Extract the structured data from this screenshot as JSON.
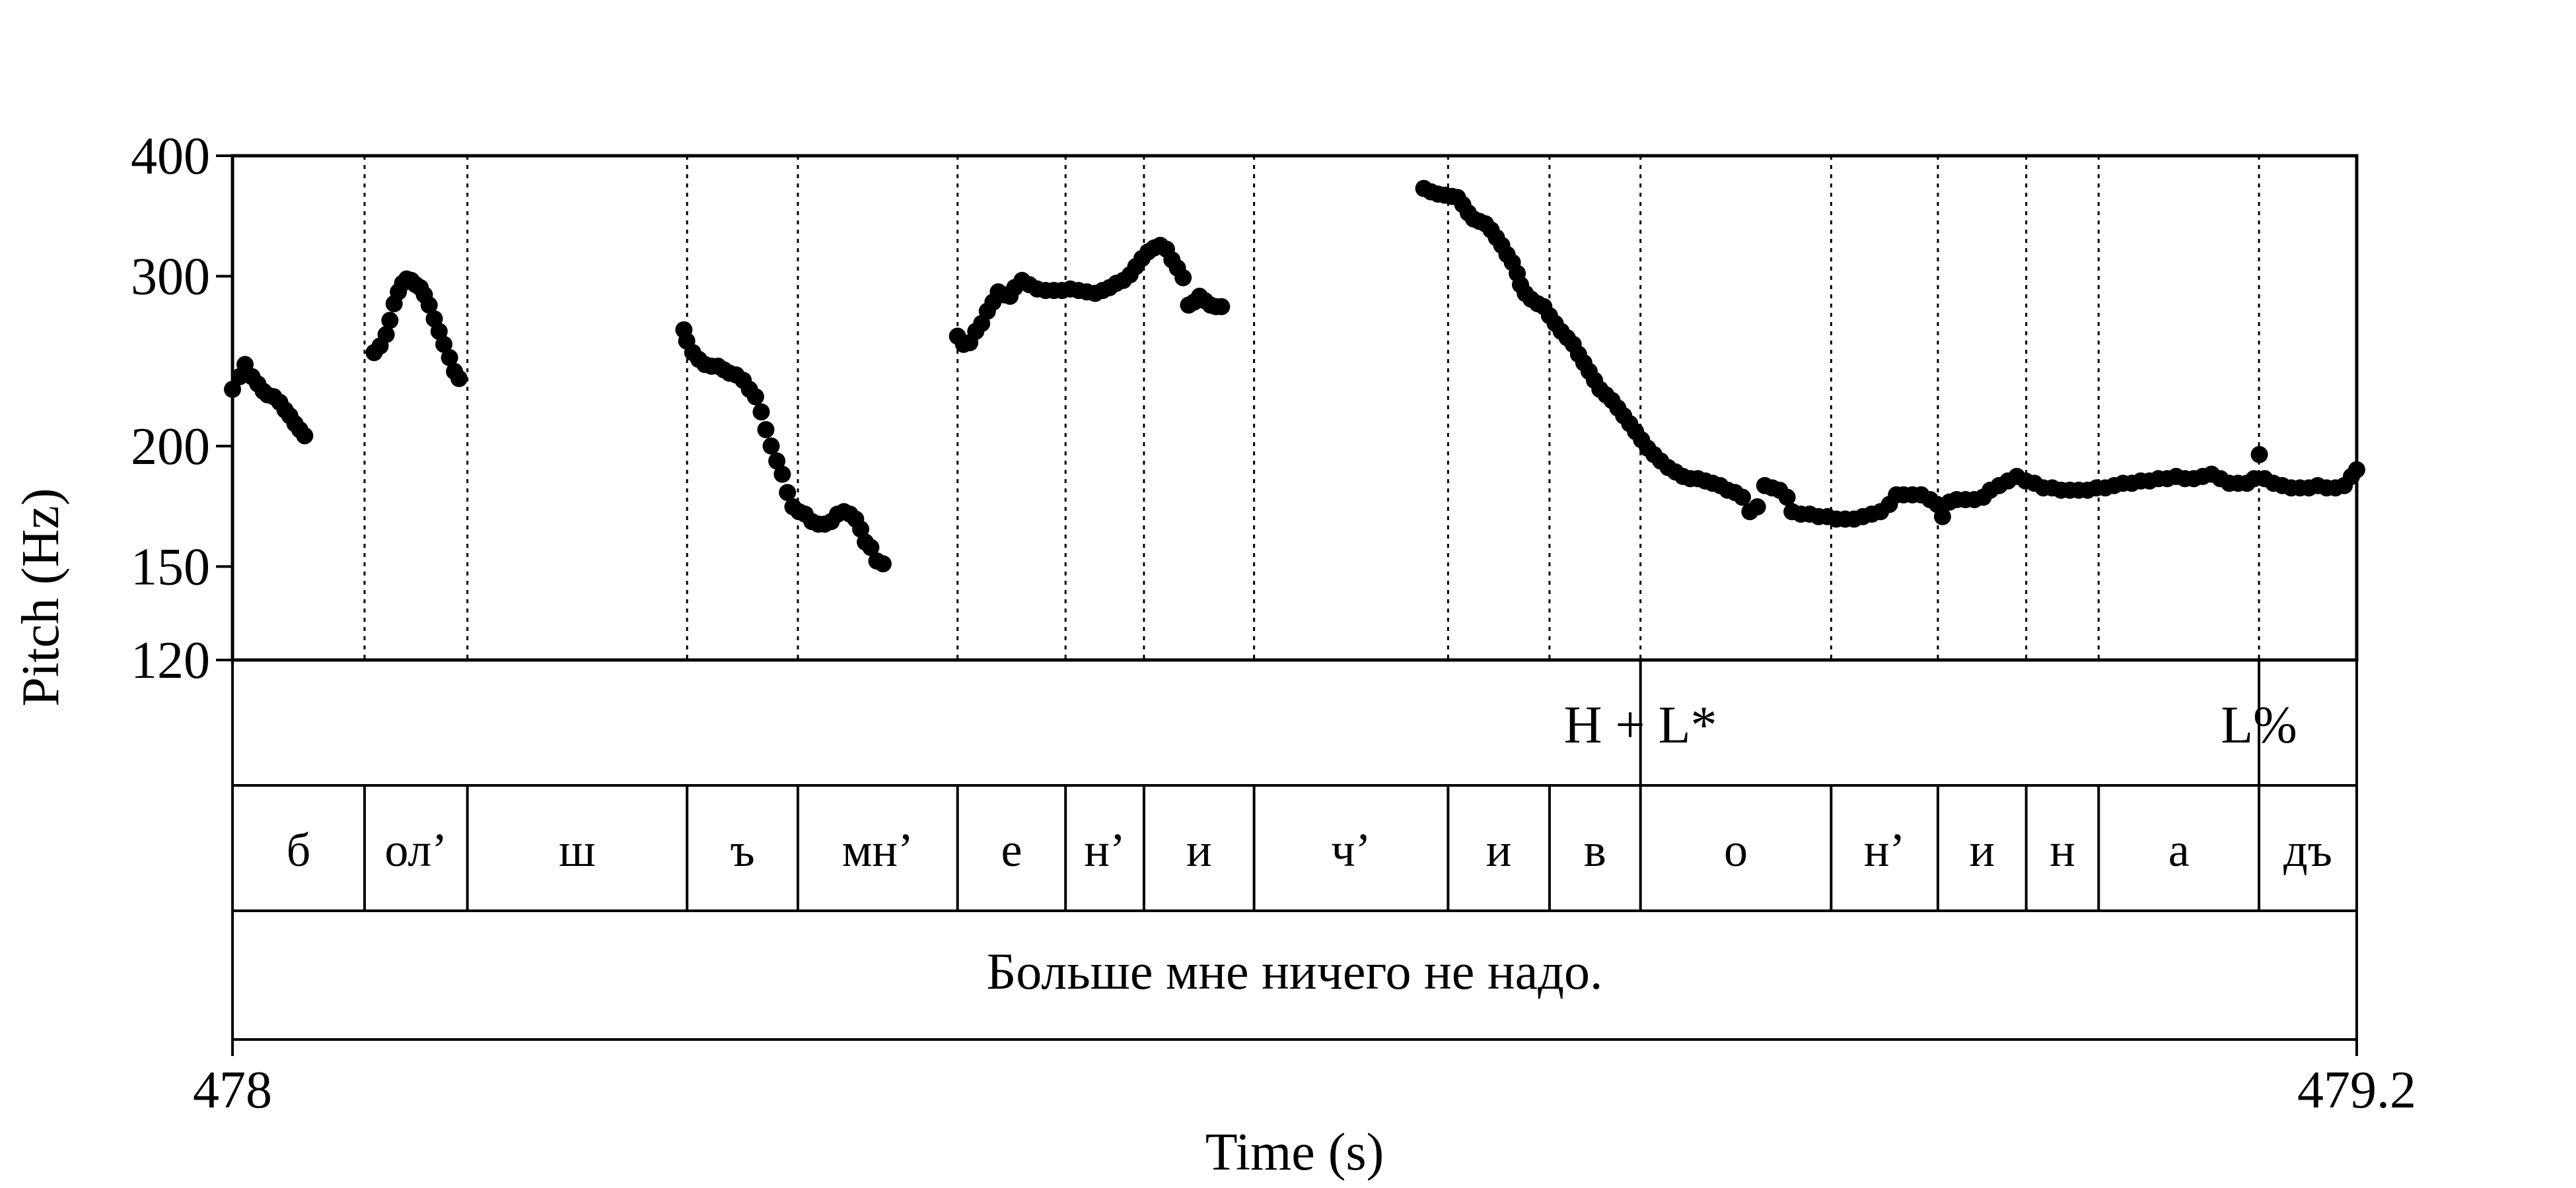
{
  "chart_data": {
    "type": "scatter",
    "title": "",
    "xlabel": "Time (s)",
    "ylabel": "Pitch (Hz)",
    "xlim": [
      478,
      479.2
    ],
    "ylim": [
      120,
      400
    ],
    "y_scale": "log",
    "x_tick_labels": [
      "478",
      "479.2"
    ],
    "y_tick_labels": [
      "120",
      "150",
      "200",
      "300",
      "400"
    ],
    "y_ticks": [
      120,
      150,
      200,
      300,
      400
    ],
    "grid": false,
    "point_color": "#000000",
    "segment_boundaries_s": [
      478.0746,
      478.1327,
      478.2568,
      478.3194,
      478.4096,
      478.4706,
      478.5149,
      478.5771,
      478.6867,
      478.744,
      478.7954,
      478.9031,
      478.9634,
      479.0133,
      479.0542,
      479.1448
    ],
    "tones": [
      {
        "label": "H+L*",
        "time_s": 478.7954
      },
      {
        "label": "L%",
        "time_s": 479.1448
      }
    ],
    "segments": [
      "б",
      "ол’",
      "ш",
      "ъ",
      "мн’",
      "е",
      "н’",
      "и",
      "ч’",
      "и",
      "в",
      "о",
      "н’",
      "и",
      "н",
      "а",
      "дъ"
    ],
    "sentence": "Больше мне ничего не надо.",
    "series": [
      {
        "values": [
          [
            478.0,
            229
          ],
          [
            478.004,
            236
          ],
          [
            478.0071,
            243
          ],
          [
            478.011,
            236
          ],
          [
            478.0143,
            232
          ],
          [
            478.0174,
            228
          ],
          [
            478.0198,
            226
          ],
          [
            478.0233,
            225
          ],
          [
            478.0267,
            222
          ],
          [
            478.0297,
            218
          ],
          [
            478.0324,
            215
          ],
          [
            478.0353,
            211
          ],
          [
            478.038,
            208
          ],
          [
            478.0408,
            205
          ],
          [
            478.08,
            250
          ],
          [
            478.0834,
            254
          ],
          [
            478.0868,
            261
          ],
          [
            478.0889,
            270
          ],
          [
            478.0913,
            281
          ],
          [
            478.0937,
            289
          ],
          [
            478.0961,
            295
          ],
          [
            478.0984,
            298
          ],
          [
            478.101,
            297
          ],
          [
            478.1035,
            294
          ],
          [
            478.106,
            292
          ],
          [
            478.1084,
            287
          ],
          [
            478.1111,
            280
          ],
          [
            478.114,
            271
          ],
          [
            478.1167,
            263
          ],
          [
            478.1194,
            255
          ],
          [
            478.1226,
            247
          ],
          [
            478.1254,
            239
          ],
          [
            478.128,
            235
          ],
          [
            478.255,
            264
          ],
          [
            478.2566,
            257
          ],
          [
            478.26,
            250
          ],
          [
            478.2634,
            246
          ],
          [
            478.2669,
            243
          ],
          [
            478.2706,
            242
          ],
          [
            478.2743,
            242
          ],
          [
            478.2775,
            240
          ],
          [
            478.2808,
            238
          ],
          [
            478.2845,
            237
          ],
          [
            478.2885,
            234
          ],
          [
            478.292,
            229
          ],
          [
            478.2955,
            225
          ],
          [
            478.2987,
            217
          ],
          [
            478.3013,
            208
          ],
          [
            478.3043,
            200
          ],
          [
            478.3075,
            193
          ],
          [
            478.3106,
            187
          ],
          [
            478.3135,
            179
          ],
          [
            478.3166,
            173
          ],
          [
            478.32,
            171
          ],
          [
            478.3235,
            170
          ],
          [
            478.3273,
            167
          ],
          [
            478.3309,
            166
          ],
          [
            478.3346,
            166
          ],
          [
            478.3382,
            167
          ],
          [
            478.3418,
            170
          ],
          [
            478.3454,
            171
          ],
          [
            478.3488,
            170
          ],
          [
            478.352,
            168
          ],
          [
            478.3549,
            164
          ],
          [
            478.3575,
            159
          ],
          [
            478.3606,
            157
          ],
          [
            478.364,
            152
          ],
          [
            478.3675,
            151
          ],
          [
            478.4096,
            260
          ],
          [
            478.413,
            255
          ],
          [
            478.4165,
            256
          ],
          [
            478.4199,
            263
          ],
          [
            478.4232,
            268
          ],
          [
            478.4264,
            276
          ],
          [
            478.4296,
            282
          ],
          [
            478.4326,
            289
          ],
          [
            478.4359,
            287
          ],
          [
            478.4392,
            286
          ],
          [
            478.4419,
            292
          ],
          [
            478.446,
            297
          ],
          [
            478.4502,
            294
          ],
          [
            478.4546,
            291
          ],
          [
            478.4593,
            290
          ],
          [
            478.464,
            290
          ],
          [
            478.4686,
            290
          ],
          [
            478.4733,
            291
          ],
          [
            478.478,
            290
          ],
          [
            478.4826,
            289
          ],
          [
            478.4873,
            288
          ],
          [
            478.4916,
            290
          ],
          [
            478.4955,
            292
          ],
          [
            478.4993,
            295
          ],
          [
            478.5032,
            297
          ],
          [
            478.507,
            301
          ],
          [
            478.5103,
            307
          ],
          [
            478.5138,
            313
          ],
          [
            478.5172,
            318
          ],
          [
            478.5207,
            321
          ],
          [
            478.5241,
            323
          ],
          [
            478.5276,
            320
          ],
          [
            478.5307,
            312
          ],
          [
            478.5338,
            306
          ],
          [
            478.537,
            299
          ],
          [
            478.5401,
            280
          ],
          [
            478.5432,
            282
          ],
          [
            478.5463,
            286
          ],
          [
            478.5494,
            283
          ],
          [
            478.5525,
            280
          ],
          [
            478.5556,
            279
          ],
          [
            478.5587,
            279
          ],
          [
            478.673,
            370
          ],
          [
            478.677,
            367
          ],
          [
            478.681,
            365
          ],
          [
            478.685,
            364
          ],
          [
            478.689,
            363
          ],
          [
            478.692,
            362
          ],
          [
            478.695,
            356
          ],
          [
            478.6981,
            349
          ],
          [
            478.7011,
            344
          ],
          [
            478.7044,
            342
          ],
          [
            478.7078,
            340
          ],
          [
            478.711,
            335
          ],
          [
            478.714,
            329
          ],
          [
            478.717,
            323
          ],
          [
            478.72,
            316
          ],
          [
            478.723,
            310
          ],
          [
            478.7258,
            302
          ],
          [
            478.7276,
            294
          ],
          [
            478.7303,
            288
          ],
          [
            478.7336,
            284
          ],
          [
            478.7373,
            281
          ],
          [
            478.7408,
            279
          ],
          [
            478.744,
            273
          ],
          [
            478.7472,
            268
          ],
          [
            478.7506,
            263
          ],
          [
            478.754,
            259
          ],
          [
            478.7574,
            255
          ],
          [
            478.7604,
            249
          ],
          [
            478.7634,
            244
          ],
          [
            478.7664,
            239
          ],
          [
            478.7694,
            234
          ],
          [
            478.7725,
            229
          ],
          [
            478.7759,
            226
          ],
          [
            478.7793,
            223
          ],
          [
            478.7826,
            219
          ],
          [
            478.7859,
            215
          ],
          [
            478.7893,
            211
          ],
          [
            478.7926,
            207
          ],
          [
            478.796,
            203
          ],
          [
            478.7994,
            199
          ],
          [
            478.803,
            196
          ],
          [
            478.8068,
            193
          ],
          [
            478.811,
            190
          ],
          [
            478.8152,
            188
          ],
          [
            478.8194,
            186
          ],
          [
            478.8236,
            185
          ],
          [
            478.8278,
            185
          ],
          [
            478.832,
            184
          ],
          [
            478.8362,
            183
          ],
          [
            478.8404,
            182
          ],
          [
            478.8446,
            180
          ],
          [
            478.8488,
            179
          ],
          [
            478.853,
            177
          ],
          [
            478.8572,
            171
          ],
          [
            478.8614,
            173
          ],
          [
            478.8656,
            182
          ],
          [
            478.8698,
            181
          ],
          [
            478.874,
            180
          ],
          [
            478.8782,
            177
          ],
          [
            478.881,
            171
          ],
          [
            478.886,
            170
          ],
          [
            478.891,
            170
          ],
          [
            478.896,
            169
          ],
          [
            478.901,
            169
          ],
          [
            478.906,
            168
          ],
          [
            478.911,
            168
          ],
          [
            478.916,
            168
          ],
          [
            478.921,
            169
          ],
          [
            478.926,
            170
          ],
          [
            478.931,
            171
          ],
          [
            478.936,
            174
          ],
          [
            478.94,
            178
          ],
          [
            478.944,
            178
          ],
          [
            478.949,
            178
          ],
          [
            478.954,
            178
          ],
          [
            478.959,
            176
          ],
          [
            478.963,
            174
          ],
          [
            478.966,
            169
          ],
          [
            478.97,
            175
          ],
          [
            478.974,
            176
          ],
          [
            478.979,
            176
          ],
          [
            478.984,
            176
          ],
          [
            478.989,
            177
          ],
          [
            478.993,
            180
          ],
          [
            478.998,
            182
          ],
          [
            479.003,
            184
          ],
          [
            479.008,
            186
          ],
          [
            479.013,
            184
          ],
          [
            479.018,
            183
          ],
          [
            479.023,
            181
          ],
          [
            479.028,
            181
          ],
          [
            479.033,
            180
          ],
          [
            479.038,
            180
          ],
          [
            479.043,
            180
          ],
          [
            479.048,
            180
          ],
          [
            479.053,
            181
          ],
          [
            479.058,
            181
          ],
          [
            479.063,
            182
          ],
          [
            479.068,
            183
          ],
          [
            479.073,
            183
          ],
          [
            479.078,
            184
          ],
          [
            479.083,
            184
          ],
          [
            479.088,
            185
          ],
          [
            479.093,
            185
          ],
          [
            479.098,
            186
          ],
          [
            479.103,
            185
          ],
          [
            479.108,
            185
          ],
          [
            479.113,
            186
          ],
          [
            479.118,
            187
          ],
          [
            479.123,
            185
          ],
          [
            479.128,
            183
          ],
          [
            479.133,
            183
          ],
          [
            479.138,
            183
          ],
          [
            479.142,
            185
          ],
          [
            479.145,
            196
          ],
          [
            479.148,
            185
          ],
          [
            479.153,
            183
          ],
          [
            479.158,
            182
          ],
          [
            479.163,
            181
          ],
          [
            479.168,
            181
          ],
          [
            479.173,
            181
          ],
          [
            479.178,
            182
          ],
          [
            479.183,
            181
          ],
          [
            479.188,
            181
          ],
          [
            479.193,
            182
          ],
          [
            479.197,
            186
          ],
          [
            479.2,
            189
          ]
        ]
      }
    ]
  }
}
